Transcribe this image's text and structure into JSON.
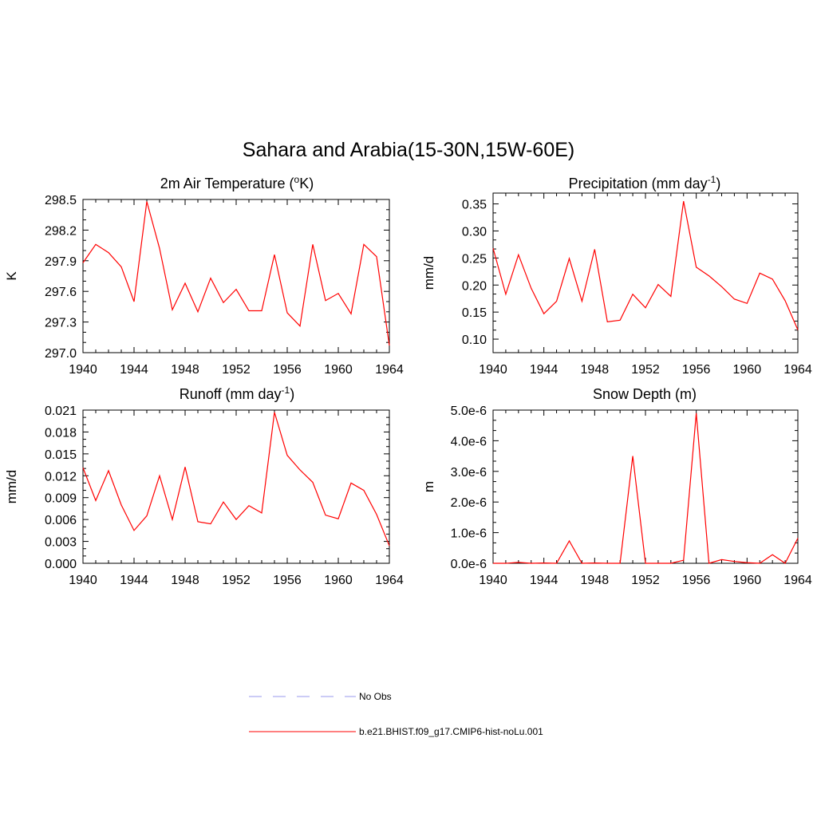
{
  "page_title": "Sahara and Arabia(15-30N,15W-60E)",
  "legend": [
    {
      "label": "No Obs",
      "color": "#9999ee",
      "style": "dashed"
    },
    {
      "label": "b.e21.BHIST.f09_g17.CMIP6-hist-noLu.001",
      "color": "#ff0000",
      "style": "solid"
    }
  ],
  "chart_data": [
    {
      "type": "line",
      "title": "2m Air Temperature (",
      "title_sup": "o",
      "title_tail": "K)",
      "ylabel": "K",
      "x": [
        1940,
        1941,
        1942,
        1943,
        1944,
        1945,
        1946,
        1947,
        1948,
        1949,
        1950,
        1951,
        1952,
        1953,
        1954,
        1955,
        1956,
        1957,
        1958,
        1959,
        1960,
        1961,
        1962,
        1963,
        1964
      ],
      "xlim": [
        1940,
        1964
      ],
      "xticks": [
        "1940",
        "1944",
        "1948",
        "1952",
        "1956",
        "1960",
        "1964"
      ],
      "ylim": [
        297.0,
        298.5
      ],
      "yticks": [
        "297.0",
        "297.3",
        "297.6",
        "297.9",
        "298.2",
        "298.5"
      ],
      "series": [
        {
          "color": "#ff0000",
          "values": [
            297.88,
            298.06,
            297.98,
            297.84,
            297.5,
            298.48,
            298.02,
            297.42,
            297.68,
            297.4,
            297.73,
            297.49,
            297.62,
            297.41,
            297.41,
            297.96,
            297.39,
            297.26,
            298.06,
            297.51,
            297.58,
            297.38,
            298.06,
            297.94,
            297.07
          ]
        }
      ]
    },
    {
      "type": "line",
      "title": "Precipitation (mm day",
      "title_sup": "-1",
      "title_tail": ")",
      "ylabel": "mm/d",
      "x": [
        1940,
        1941,
        1942,
        1943,
        1944,
        1945,
        1946,
        1947,
        1948,
        1949,
        1950,
        1951,
        1952,
        1953,
        1954,
        1955,
        1956,
        1957,
        1958,
        1959,
        1960,
        1961,
        1962,
        1963,
        1964
      ],
      "xlim": [
        1940,
        1964
      ],
      "xticks": [
        "1940",
        "1944",
        "1948",
        "1952",
        "1956",
        "1960",
        "1964"
      ],
      "ylim": [
        0.075,
        0.37
      ],
      "yticks": [
        "0.10",
        "0.15",
        "0.20",
        "0.25",
        "0.30",
        "0.35"
      ],
      "series": [
        {
          "color": "#ff0000",
          "values": [
            0.268,
            0.183,
            0.256,
            0.194,
            0.147,
            0.17,
            0.249,
            0.17,
            0.266,
            0.132,
            0.135,
            0.183,
            0.158,
            0.201,
            0.179,
            0.355,
            0.233,
            0.217,
            0.197,
            0.174,
            0.166,
            0.222,
            0.211,
            0.171,
            0.117
          ]
        }
      ]
    },
    {
      "type": "line",
      "title": "Runoff (mm day",
      "title_sup": "-1",
      "title_tail": ")",
      "ylabel": "mm/d",
      "x": [
        1940,
        1941,
        1942,
        1943,
        1944,
        1945,
        1946,
        1947,
        1948,
        1949,
        1950,
        1951,
        1952,
        1953,
        1954,
        1955,
        1956,
        1957,
        1958,
        1959,
        1960,
        1961,
        1962,
        1963,
        1964
      ],
      "xlim": [
        1940,
        1964
      ],
      "xticks": [
        "1940",
        "1944",
        "1948",
        "1952",
        "1956",
        "1960",
        "1964"
      ],
      "ylim": [
        0.0,
        0.021
      ],
      "yticks": [
        "0.000",
        "0.003",
        "0.006",
        "0.009",
        "0.012",
        "0.015",
        "0.018",
        "0.021"
      ],
      "series": [
        {
          "color": "#ff0000",
          "values": [
            0.0131,
            0.0086,
            0.0127,
            0.008,
            0.0045,
            0.0065,
            0.012,
            0.006,
            0.0132,
            0.0057,
            0.0054,
            0.0084,
            0.006,
            0.0079,
            0.0069,
            0.0207,
            0.0148,
            0.0128,
            0.0111,
            0.0066,
            0.0061,
            0.011,
            0.01,
            0.0067,
            0.0024
          ]
        }
      ]
    },
    {
      "type": "line",
      "title": "Snow Depth (m)",
      "title_sup": "",
      "title_tail": "",
      "ylabel": "m",
      "x": [
        1940,
        1941,
        1942,
        1943,
        1944,
        1945,
        1946,
        1947,
        1948,
        1949,
        1950,
        1951,
        1952,
        1953,
        1954,
        1955,
        1956,
        1957,
        1958,
        1959,
        1960,
        1961,
        1962,
        1963,
        1964
      ],
      "xlim": [
        1940,
        1964
      ],
      "xticks": [
        "1940",
        "1944",
        "1948",
        "1952",
        "1956",
        "1960",
        "1964"
      ],
      "ylim": [
        0.0,
        5e-06
      ],
      "yticks": [
        "0.0e-6",
        "1.0e-6",
        "2.0e-6",
        "3.0e-6",
        "4.0e-6",
        "5.0e-6"
      ],
      "series": [
        {
          "color": "#ff0000",
          "values": [
            0.0,
            0.0,
            3e-08,
            0.0,
            1e-08,
            0.0,
            7.3e-07,
            0.0,
            1e-08,
            0.0,
            0.0,
            3.5e-06,
            0.0,
            0.0,
            0.0,
            1e-07,
            4.9e-06,
            0.0,
            1.2e-07,
            6e-08,
            2e-08,
            0.0,
            2.8e-07,
            0.0,
            8.2e-07
          ]
        }
      ]
    }
  ]
}
